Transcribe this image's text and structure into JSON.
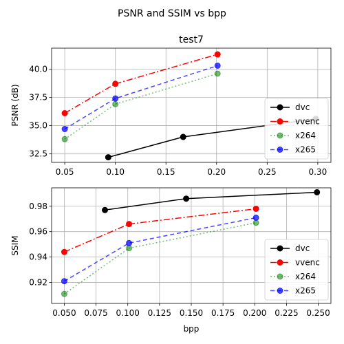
{
  "figure": {
    "suptitle": "PSNR and SSIM vs bpp"
  },
  "chart_data": [
    {
      "type": "line",
      "title": "test7",
      "xlabel": "",
      "ylabel": "PSNR (dB)",
      "xlim": [
        0.037,
        0.313
      ],
      "ylim": [
        31.75,
        41.85
      ],
      "xticks": [
        0.05,
        0.1,
        0.15,
        0.2,
        0.25,
        0.3
      ],
      "xtick_labels": [
        "0.05",
        "0.10",
        "0.15",
        "0.20",
        "0.25",
        "0.30"
      ],
      "yticks": [
        32.5,
        35.0,
        37.5,
        40.0
      ],
      "ytick_labels": [
        "32.5",
        "35.0",
        "37.5",
        "40.0"
      ],
      "grid": true,
      "legend_position": "lower-right",
      "series": [
        {
          "name": "dvc",
          "color": "#000000",
          "dash": "solid",
          "alpha": 1.0,
          "x": [
            0.093,
            0.167,
            0.298
          ],
          "y": [
            32.2,
            34.0,
            35.6
          ]
        },
        {
          "name": "vvenc",
          "color": "#ff0000",
          "dash": "dashdot",
          "alpha": 1.0,
          "x": [
            0.05,
            0.1,
            0.201
          ],
          "y": [
            36.1,
            38.7,
            41.3
          ]
        },
        {
          "name": "x264",
          "color": "#008000",
          "dash": "dotted",
          "alpha": 0.55,
          "x": [
            0.05,
            0.1,
            0.201
          ],
          "y": [
            33.8,
            36.9,
            39.6
          ]
        },
        {
          "name": "x265",
          "color": "#0000ff",
          "dash": "dashed",
          "alpha": 0.72,
          "x": [
            0.05,
            0.1,
            0.201
          ],
          "y": [
            34.7,
            37.4,
            40.3
          ]
        }
      ]
    },
    {
      "type": "line",
      "title": "",
      "xlabel": "bpp",
      "ylabel": "SSIM",
      "xlim": [
        0.04,
        0.26
      ],
      "ylim": [
        0.9035,
        0.9945
      ],
      "xticks": [
        0.05,
        0.075,
        0.1,
        0.125,
        0.15,
        0.175,
        0.2,
        0.225,
        0.25
      ],
      "xtick_labels": [
        "0.050",
        "0.075",
        "0.100",
        "0.125",
        "0.150",
        "0.175",
        "0.200",
        "0.225",
        "0.250"
      ],
      "yticks": [
        0.92,
        0.94,
        0.96,
        0.98
      ],
      "ytick_labels": [
        "0.92",
        "0.94",
        "0.96",
        "0.98"
      ],
      "grid": true,
      "legend_position": "lower-right",
      "series": [
        {
          "name": "dvc",
          "color": "#000000",
          "dash": "solid",
          "alpha": 1.0,
          "x": [
            0.082,
            0.146,
            0.249
          ],
          "y": [
            0.977,
            0.986,
            0.991
          ]
        },
        {
          "name": "vvenc",
          "color": "#ff0000",
          "dash": "dashdot",
          "alpha": 1.0,
          "x": [
            0.05,
            0.101,
            0.201
          ],
          "y": [
            0.944,
            0.966,
            0.978
          ]
        },
        {
          "name": "x264",
          "color": "#008000",
          "dash": "dotted",
          "alpha": 0.55,
          "x": [
            0.05,
            0.101,
            0.201
          ],
          "y": [
            0.911,
            0.947,
            0.967
          ]
        },
        {
          "name": "x265",
          "color": "#0000ff",
          "dash": "dashed",
          "alpha": 0.72,
          "x": [
            0.05,
            0.101,
            0.201
          ],
          "y": [
            0.921,
            0.951,
            0.971
          ]
        }
      ]
    }
  ]
}
